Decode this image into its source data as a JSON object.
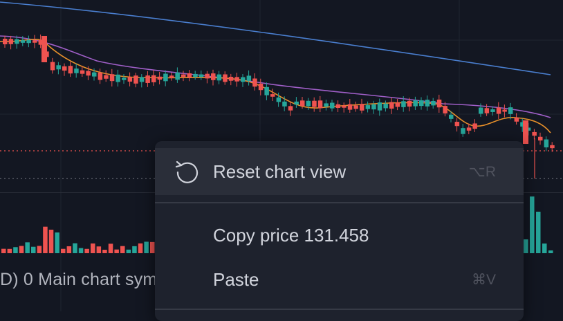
{
  "colors": {
    "background": "#131722",
    "grid": "#1f2430",
    "candle_up": "#26a69a",
    "candle_down": "#ef5350",
    "ma_fast": "#e8902a",
    "ma_mid": "#a05fc8",
    "ma_slow": "#4a7fd0",
    "price_line": "#ef5350",
    "menu_bg": "#1e222d",
    "menu_text": "#d1d4dc",
    "menu_shortcut": "#50535e"
  },
  "volume_pane": {
    "legend": "D) 0 Main chart sym"
  },
  "context_menu": {
    "items": [
      {
        "label": "Reset chart view",
        "shortcut": "⌥R",
        "icon": "reset-arrow-icon",
        "hovered": true
      },
      {
        "label": "Copy price 131.458",
        "shortcut": "",
        "icon": ""
      },
      {
        "label": "Paste",
        "shortcut": "⌘V",
        "icon": ""
      }
    ]
  }
}
